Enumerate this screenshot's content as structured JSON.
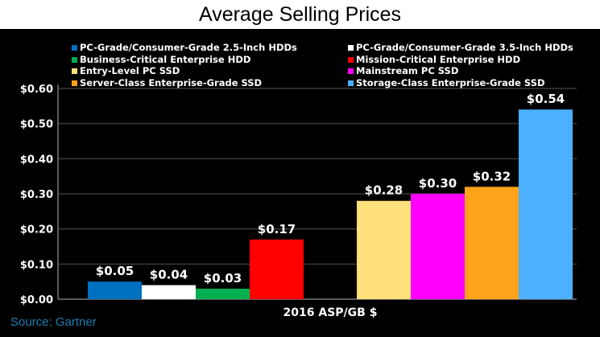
{
  "chart_data": {
    "type": "bar",
    "title": "Average Selling Prices",
    "xlabel": "2016 ASP/GB $",
    "ylabel": "",
    "ylim": [
      0,
      0.6
    ],
    "yticks": [
      "$0.00",
      "$0.10",
      "$0.20",
      "$0.30",
      "$0.40",
      "$0.50",
      "$0.60"
    ],
    "grid": true,
    "legend_position": "top",
    "series": [
      {
        "name": "PC-Grade/Consumer-Grade 2.5-Inch HDDs",
        "value": 0.05,
        "label": "$0.05",
        "color": "#0070c0",
        "group": 0
      },
      {
        "name": "PC-Grade/Consumer-Grade 3.5-Inch HDDs",
        "value": 0.04,
        "label": "$0.04",
        "color": "#ffffff",
        "group": 0
      },
      {
        "name": "Business-Critical Enterprise HDD",
        "value": 0.03,
        "label": "$0.03",
        "color": "#00b050",
        "group": 0
      },
      {
        "name": "Mission-Critical Enterprise HDD",
        "value": 0.17,
        "label": "$0.17",
        "color": "#ff0000",
        "group": 0
      },
      {
        "name": "Entry-Level PC SSD",
        "value": 0.28,
        "label": "$0.28",
        "color": "#ffe07a",
        "group": 1
      },
      {
        "name": "Mainstream PC SSD",
        "value": 0.3,
        "label": "$0.30",
        "color": "#ff00ff",
        "group": 1
      },
      {
        "name": "Server-Class Enterprise-Grade SSD",
        "value": 0.32,
        "label": "$0.32",
        "color": "#ffa31a",
        "group": 1
      },
      {
        "name": "Storage-Class Enterprise-Grade SSD",
        "value": 0.54,
        "label": "$0.54",
        "color": "#4db0ff",
        "group": 1
      }
    ],
    "source": "Source: Gartner"
  }
}
